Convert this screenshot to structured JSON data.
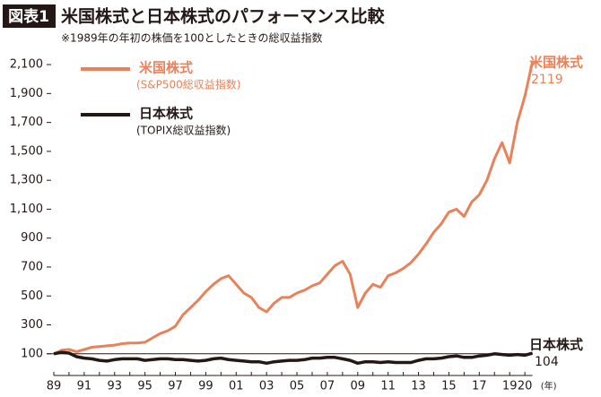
{
  "chart_data": {
    "type": "line",
    "label": "図表1",
    "title": "米国株式と日本株式のパフォーマンス比較",
    "subtitle": "※1989年の年初の株価を100としたときの総収益指数",
    "x_label": "(年)",
    "categories": [
      "89",
      null,
      null,
      null,
      "91",
      null,
      null,
      null,
      "93",
      null,
      null,
      null,
      "95",
      null,
      null,
      null,
      "97",
      null,
      null,
      null,
      "99",
      null,
      null,
      null,
      "01",
      null,
      null,
      null,
      "03",
      null,
      null,
      null,
      "05",
      null,
      null,
      null,
      "07",
      null,
      null,
      null,
      "09",
      null,
      null,
      null,
      "11",
      null,
      null,
      null,
      "13",
      null,
      null,
      null,
      "15",
      null,
      null,
      null,
      "17",
      null,
      null,
      null,
      "19",
      null,
      "20",
      null
    ],
    "series": [
      {
        "name": "米国株式",
        "description": "(S&P500総収益指数)",
        "color": "#e8825a",
        "values": [
          100,
          125,
          130,
          115,
          130,
          145,
          150,
          155,
          160,
          170,
          175,
          175,
          180,
          210,
          240,
          260,
          290,
          370,
          420,
          470,
          530,
          580,
          620,
          640,
          580,
          520,
          490,
          420,
          390,
          450,
          490,
          490,
          520,
          540,
          570,
          590,
          650,
          710,
          740,
          650,
          420,
          520,
          580,
          560,
          640,
          660,
          690,
          730,
          790,
          860,
          940,
          1000,
          1080,
          1100,
          1050,
          1150,
          1200,
          1300,
          1450,
          1560,
          1420,
          1700,
          1880,
          2119
        ]
      },
      {
        "name": "日本株式",
        "description": "(TOPIX総収益指数)",
        "color": "#231815",
        "values": [
          100,
          110,
          105,
          80,
          70,
          65,
          55,
          50,
          60,
          65,
          65,
          65,
          55,
          60,
          65,
          65,
          60,
          60,
          55,
          50,
          55,
          65,
          70,
          60,
          55,
          50,
          45,
          45,
          35,
          45,
          50,
          55,
          55,
          60,
          70,
          70,
          75,
          75,
          65,
          55,
          35,
          45,
          45,
          40,
          45,
          40,
          40,
          40,
          55,
          65,
          65,
          70,
          80,
          85,
          75,
          75,
          85,
          90,
          100,
          95,
          90,
          95,
          90,
          104
        ]
      }
    ],
    "baseline": 100,
    "ylim": [
      -50,
      2150
    ],
    "yticks": [
      100,
      300,
      500,
      700,
      900,
      {
        "value": 1100,
        "label": "1,100"
      },
      {
        "value": 1300,
        "label": "1,300"
      },
      {
        "value": 1500,
        "label": "1,500"
      },
      {
        "value": 1700,
        "label": "1,700"
      },
      {
        "value": 1900,
        "label": "1,900"
      },
      {
        "value": 2100,
        "label": "2,100"
      }
    ]
  }
}
